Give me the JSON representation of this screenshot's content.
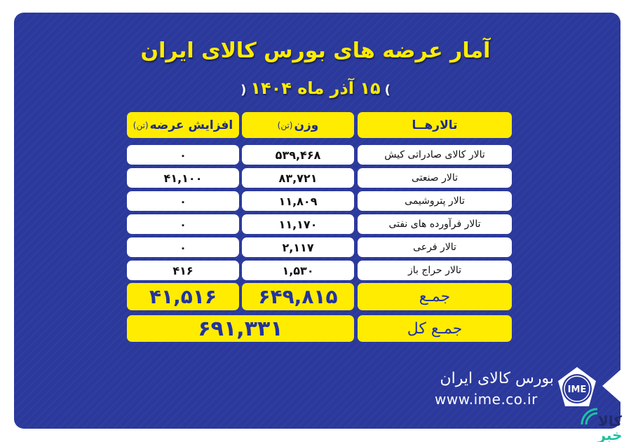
{
  "title": "آمار عرضه های بورس کالای ایران",
  "date": "۱۵ آذر ماه ۱۴۰۴",
  "date_brackets": {
    "open": "(",
    "close": ")"
  },
  "table": {
    "headers": [
      {
        "label": "تالارهــا",
        "unit": ""
      },
      {
        "label": "وزن",
        "unit": "(تن)"
      },
      {
        "label": "افزایش عرضه",
        "unit": "(تن)"
      }
    ],
    "rows": [
      {
        "hall": "تالار کالای صادراتی کیش",
        "weight": "۵۳۹,۴۶۸",
        "increase": "۰"
      },
      {
        "hall": "تالار صنعتی",
        "weight": "۸۳,۷۲۱",
        "increase": "۴۱,۱۰۰"
      },
      {
        "hall": "تالار پتروشیمی",
        "weight": "۱۱,۸۰۹",
        "increase": "۰"
      },
      {
        "hall": "تالار فرآورده های نفتی",
        "weight": "۱۱,۱۷۰",
        "increase": "۰"
      },
      {
        "hall": "تالار فرعی",
        "weight": "۲,۱۱۷",
        "increase": "۰"
      },
      {
        "hall": "تالار حراج باز",
        "weight": "۱,۵۳۰",
        "increase": "۴۱۶"
      }
    ],
    "sum": {
      "label": "جمـع",
      "weight": "۶۴۹,۸۱۵",
      "increase": "۴۱,۵۱۶"
    },
    "grand_total": {
      "label": "جمـع کل",
      "value": "۶۹۱,۳۳۱"
    }
  },
  "footer": {
    "brand": "بورس کالای ایران",
    "url": "www.ime.co.ir",
    "logo_text": "IME",
    "watermark": "کالا خبر"
  },
  "colors": {
    "background": "#2b399c",
    "accent": "#ffec00",
    "sum_text": "#2233a0",
    "watermark": "#1fc2a0"
  }
}
